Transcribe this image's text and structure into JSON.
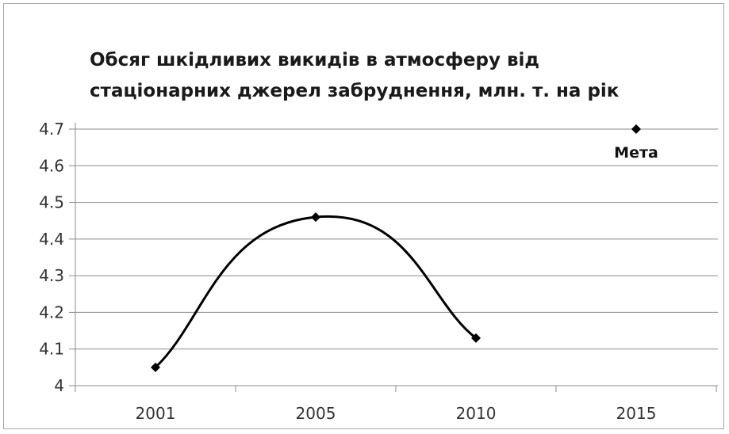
{
  "chart_data": {
    "type": "line",
    "title_lines": [
      "Обсяг шкідливих викидів в атмосферу від",
      "стаціонарних джерел забруднення, млн. т. на рік"
    ],
    "categories": [
      "2001",
      "2005",
      "2010",
      "2015"
    ],
    "series": [
      {
        "values": [
          4.05,
          4.46,
          4.13,
          null
        ],
        "color": "#000000",
        "smooth": true,
        "marker": "diamond"
      },
      {
        "values": [
          null,
          null,
          null,
          4.7
        ],
        "color": "#000000",
        "marker": "diamond",
        "line": false
      }
    ],
    "annotations": [
      {
        "text": "Мета",
        "category": "2015",
        "value": 4.7
      }
    ],
    "yticks": [
      "4",
      "4.1",
      "4.2",
      "4.3",
      "4.4",
      "4.5",
      "4.6",
      "4.7"
    ],
    "ylim": [
      4,
      4.7
    ],
    "grid": true,
    "legend": "none"
  }
}
